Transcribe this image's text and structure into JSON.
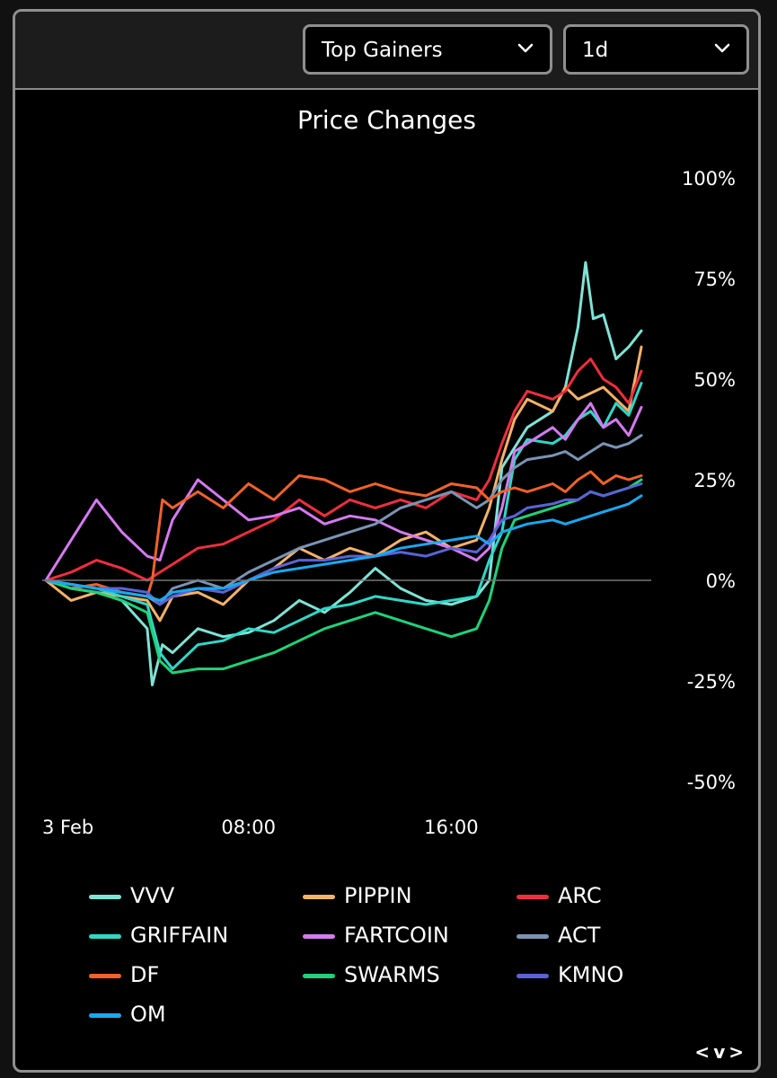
{
  "controls": {
    "list_dropdown": "Top Gainers",
    "period_dropdown": "1d"
  },
  "pager": {
    "prev": "<",
    "next": ">",
    "sep": "v"
  },
  "chart_data": {
    "type": "line",
    "title": "Price Changes",
    "x_ticks": [
      "3 Feb",
      "08:00",
      "16:00"
    ],
    "y_ticks": [
      "100%",
      "75%",
      "50%",
      "25%",
      "0%",
      "-25%",
      "-50%"
    ],
    "ylim": [
      -50,
      100
    ],
    "x_unit": "hours since 3 Feb 00:00",
    "x_range": [
      0,
      23.5
    ],
    "grid": false,
    "zero_line": true,
    "legend_position": "bottom",
    "series": [
      {
        "name": "VVV",
        "color": "#7fe3d6",
        "points": [
          [
            0,
            0
          ],
          [
            1,
            -2
          ],
          [
            2,
            -3
          ],
          [
            3,
            -5
          ],
          [
            4,
            -12
          ],
          [
            4.2,
            -26
          ],
          [
            4.6,
            -16
          ],
          [
            5,
            -18
          ],
          [
            6,
            -12
          ],
          [
            7,
            -14
          ],
          [
            8,
            -13
          ],
          [
            9,
            -10
          ],
          [
            10,
            -5
          ],
          [
            11,
            -8
          ],
          [
            12,
            -3
          ],
          [
            13,
            3
          ],
          [
            14,
            -2
          ],
          [
            15,
            -5
          ],
          [
            16,
            -6
          ],
          [
            17,
            -4
          ],
          [
            17.5,
            0
          ],
          [
            18,
            28
          ],
          [
            19,
            38
          ],
          [
            20,
            42
          ],
          [
            20.5,
            48
          ],
          [
            21,
            63
          ],
          [
            21.3,
            79
          ],
          [
            21.6,
            65
          ],
          [
            22,
            66
          ],
          [
            22.5,
            55
          ],
          [
            23,
            58
          ],
          [
            23.5,
            62
          ]
        ]
      },
      {
        "name": "PIPPIN",
        "color": "#f5b26a",
        "points": [
          [
            0,
            0
          ],
          [
            1,
            -5
          ],
          [
            2,
            -3
          ],
          [
            3,
            -4
          ],
          [
            4,
            -5
          ],
          [
            4.5,
            -10
          ],
          [
            5,
            -4
          ],
          [
            6,
            -3
          ],
          [
            7,
            -6
          ],
          [
            8,
            0
          ],
          [
            9,
            3
          ],
          [
            10,
            8
          ],
          [
            11,
            5
          ],
          [
            12,
            8
          ],
          [
            13,
            6
          ],
          [
            14,
            10
          ],
          [
            15,
            12
          ],
          [
            16,
            8
          ],
          [
            17,
            10
          ],
          [
            17.5,
            18
          ],
          [
            18,
            30
          ],
          [
            18.5,
            40
          ],
          [
            19,
            45
          ],
          [
            20,
            42
          ],
          [
            20.5,
            48
          ],
          [
            21,
            45
          ],
          [
            22,
            48
          ],
          [
            22.5,
            45
          ],
          [
            23,
            42
          ],
          [
            23.5,
            58
          ]
        ]
      },
      {
        "name": "ARC",
        "color": "#f02e3e",
        "points": [
          [
            0,
            0
          ],
          [
            1,
            2
          ],
          [
            2,
            5
          ],
          [
            3,
            3
          ],
          [
            4,
            0
          ],
          [
            4.5,
            2
          ],
          [
            5,
            4
          ],
          [
            6,
            8
          ],
          [
            7,
            9
          ],
          [
            8,
            12
          ],
          [
            9,
            15
          ],
          [
            10,
            20
          ],
          [
            11,
            16
          ],
          [
            12,
            20
          ],
          [
            13,
            18
          ],
          [
            14,
            20
          ],
          [
            15,
            18
          ],
          [
            16,
            22
          ],
          [
            17,
            20
          ],
          [
            17.5,
            25
          ],
          [
            18,
            34
          ],
          [
            18.5,
            42
          ],
          [
            19,
            47
          ],
          [
            20,
            45
          ],
          [
            20.5,
            47
          ],
          [
            21,
            52
          ],
          [
            21.5,
            55
          ],
          [
            22,
            50
          ],
          [
            22.5,
            48
          ],
          [
            23,
            44
          ],
          [
            23.5,
            52
          ]
        ]
      },
      {
        "name": "GRIFFAIN",
        "color": "#2fd8c8",
        "points": [
          [
            0,
            0
          ],
          [
            1,
            -1
          ],
          [
            2,
            -2
          ],
          [
            3,
            -4
          ],
          [
            4,
            -6
          ],
          [
            4.5,
            -18
          ],
          [
            5,
            -22
          ],
          [
            6,
            -16
          ],
          [
            7,
            -15
          ],
          [
            8,
            -12
          ],
          [
            9,
            -13
          ],
          [
            10,
            -10
          ],
          [
            11,
            -7
          ],
          [
            12,
            -6
          ],
          [
            13,
            -4
          ],
          [
            14,
            -5
          ],
          [
            15,
            -6
          ],
          [
            16,
            -5
          ],
          [
            17,
            -4
          ],
          [
            17.5,
            5
          ],
          [
            18,
            12
          ],
          [
            18.5,
            30
          ],
          [
            19,
            35
          ],
          [
            20,
            34
          ],
          [
            20.5,
            36
          ],
          [
            21,
            40
          ],
          [
            21.5,
            42
          ],
          [
            22,
            38
          ],
          [
            22.5,
            44
          ],
          [
            23,
            41
          ],
          [
            23.5,
            49
          ]
        ]
      },
      {
        "name": "FARTCOIN",
        "color": "#d57af0",
        "points": [
          [
            0,
            0
          ],
          [
            1,
            10
          ],
          [
            2,
            20
          ],
          [
            3,
            12
          ],
          [
            4,
            6
          ],
          [
            4.5,
            5
          ],
          [
            5,
            15
          ],
          [
            6,
            25
          ],
          [
            7,
            20
          ],
          [
            8,
            15
          ],
          [
            9,
            16
          ],
          [
            10,
            18
          ],
          [
            11,
            14
          ],
          [
            12,
            16
          ],
          [
            13,
            15
          ],
          [
            14,
            12
          ],
          [
            15,
            10
          ],
          [
            16,
            8
          ],
          [
            17,
            5
          ],
          [
            17.5,
            8
          ],
          [
            18,
            18
          ],
          [
            18.5,
            32
          ],
          [
            19,
            34
          ],
          [
            20,
            38
          ],
          [
            20.5,
            35
          ],
          [
            21,
            40
          ],
          [
            21.5,
            44
          ],
          [
            22,
            38
          ],
          [
            22.5,
            40
          ],
          [
            23,
            36
          ],
          [
            23.5,
            43
          ]
        ]
      },
      {
        "name": "ACT",
        "color": "#7b93b4",
        "points": [
          [
            0,
            0
          ],
          [
            1,
            -1
          ],
          [
            2,
            -2
          ],
          [
            3,
            -3
          ],
          [
            4,
            -4
          ],
          [
            4.5,
            -6
          ],
          [
            5,
            -2
          ],
          [
            6,
            0
          ],
          [
            7,
            -2
          ],
          [
            8,
            2
          ],
          [
            9,
            5
          ],
          [
            10,
            8
          ],
          [
            11,
            10
          ],
          [
            12,
            12
          ],
          [
            13,
            14
          ],
          [
            14,
            18
          ],
          [
            15,
            20
          ],
          [
            16,
            22
          ],
          [
            17,
            18
          ],
          [
            17.5,
            20
          ],
          [
            18,
            25
          ],
          [
            18.5,
            28
          ],
          [
            19,
            30
          ],
          [
            20,
            31
          ],
          [
            20.5,
            32
          ],
          [
            21,
            30
          ],
          [
            21.5,
            32
          ],
          [
            22,
            34
          ],
          [
            22.5,
            33
          ],
          [
            23,
            34
          ],
          [
            23.5,
            36
          ]
        ]
      },
      {
        "name": "DF",
        "color": "#f2622a",
        "points": [
          [
            0,
            0
          ],
          [
            1,
            -2
          ],
          [
            2,
            -1
          ],
          [
            3,
            -3
          ],
          [
            4,
            -4
          ],
          [
            4.2,
            0
          ],
          [
            4.6,
            20
          ],
          [
            5,
            18
          ],
          [
            6,
            22
          ],
          [
            7,
            18
          ],
          [
            8,
            24
          ],
          [
            9,
            20
          ],
          [
            10,
            26
          ],
          [
            11,
            25
          ],
          [
            12,
            22
          ],
          [
            13,
            24
          ],
          [
            14,
            22
          ],
          [
            15,
            21
          ],
          [
            16,
            24
          ],
          [
            17,
            23
          ],
          [
            17.5,
            20
          ],
          [
            18,
            22
          ],
          [
            18.5,
            23
          ],
          [
            19,
            22
          ],
          [
            20,
            24
          ],
          [
            20.5,
            22
          ],
          [
            21,
            25
          ],
          [
            21.5,
            27
          ],
          [
            22,
            24
          ],
          [
            22.5,
            26
          ],
          [
            23,
            25
          ],
          [
            23.5,
            26
          ]
        ]
      },
      {
        "name": "SWARMS",
        "color": "#1fd27a",
        "points": [
          [
            0,
            0
          ],
          [
            1,
            -2
          ],
          [
            2,
            -3
          ],
          [
            3,
            -5
          ],
          [
            4,
            -8
          ],
          [
            4.5,
            -20
          ],
          [
            5,
            -23
          ],
          [
            6,
            -22
          ],
          [
            7,
            -22
          ],
          [
            8,
            -20
          ],
          [
            9,
            -18
          ],
          [
            10,
            -15
          ],
          [
            11,
            -12
          ],
          [
            12,
            -10
          ],
          [
            13,
            -8
          ],
          [
            14,
            -10
          ],
          [
            15,
            -12
          ],
          [
            16,
            -14
          ],
          [
            17,
            -12
          ],
          [
            17.5,
            -5
          ],
          [
            18,
            8
          ],
          [
            18.5,
            15
          ],
          [
            19,
            16
          ],
          [
            20,
            18
          ],
          [
            20.5,
            19
          ],
          [
            21,
            20
          ],
          [
            21.5,
            22
          ],
          [
            22,
            21
          ],
          [
            22.5,
            22
          ],
          [
            23,
            23
          ],
          [
            23.5,
            25
          ]
        ]
      },
      {
        "name": "KMNO",
        "color": "#5a63d6",
        "points": [
          [
            0,
            0
          ],
          [
            1,
            -1
          ],
          [
            2,
            -2
          ],
          [
            3,
            -2
          ],
          [
            4,
            -3
          ],
          [
            4.5,
            -6
          ],
          [
            5,
            -4
          ],
          [
            6,
            -2
          ],
          [
            7,
            -3
          ],
          [
            8,
            0
          ],
          [
            9,
            3
          ],
          [
            10,
            5
          ],
          [
            11,
            5
          ],
          [
            12,
            6
          ],
          [
            13,
            6
          ],
          [
            14,
            7
          ],
          [
            15,
            6
          ],
          [
            16,
            8
          ],
          [
            17,
            7
          ],
          [
            17.5,
            10
          ],
          [
            18,
            15
          ],
          [
            18.5,
            16
          ],
          [
            19,
            18
          ],
          [
            20,
            19
          ],
          [
            20.5,
            20
          ],
          [
            21,
            20
          ],
          [
            21.5,
            22
          ],
          [
            22,
            21
          ],
          [
            22.5,
            22
          ],
          [
            23,
            23
          ],
          [
            23.5,
            24
          ]
        ]
      },
      {
        "name": "OM",
        "color": "#1aa8f0",
        "points": [
          [
            0,
            0
          ],
          [
            1,
            -1
          ],
          [
            2,
            -2
          ],
          [
            3,
            -3
          ],
          [
            4,
            -4
          ],
          [
            4.5,
            -5
          ],
          [
            5,
            -3
          ],
          [
            6,
            -2
          ],
          [
            7,
            -2
          ],
          [
            8,
            0
          ],
          [
            9,
            2
          ],
          [
            10,
            3
          ],
          [
            11,
            4
          ],
          [
            12,
            5
          ],
          [
            13,
            6
          ],
          [
            14,
            8
          ],
          [
            15,
            9
          ],
          [
            16,
            10
          ],
          [
            17,
            11
          ],
          [
            17.5,
            9
          ],
          [
            18,
            12
          ],
          [
            18.5,
            13
          ],
          [
            19,
            14
          ],
          [
            20,
            15
          ],
          [
            20.5,
            14
          ],
          [
            21,
            15
          ],
          [
            21.5,
            16
          ],
          [
            22,
            17
          ],
          [
            22.5,
            18
          ],
          [
            23,
            19
          ],
          [
            23.5,
            21
          ]
        ]
      }
    ]
  }
}
